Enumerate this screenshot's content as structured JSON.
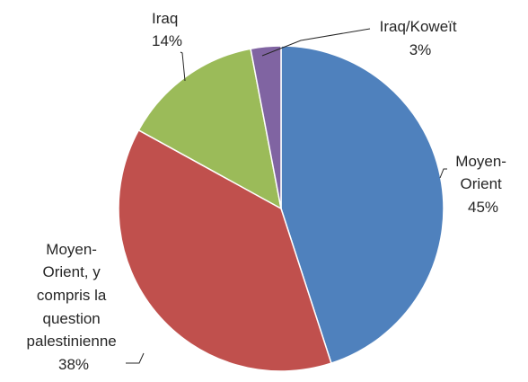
{
  "chart_data": {
    "type": "pie",
    "title": "",
    "start_angle_deg": 0,
    "direction": "clockwise",
    "slices": [
      {
        "label_lines": [
          "Moyen-",
          "Orient"
        ],
        "value": 45,
        "value_label": "45%",
        "color": "#4F81BD"
      },
      {
        "label_lines": [
          "Moyen-",
          "Orient, y",
          "compris la",
          "question",
          "palestinienne"
        ],
        "value": 38,
        "value_label": "38%",
        "color": "#C0504D"
      },
      {
        "label_lines": [
          "Iraq"
        ],
        "value": 14,
        "value_label": "14%",
        "color": "#9BBB59"
      },
      {
        "label_lines": [
          "Iraq/Koweït"
        ],
        "value": 3,
        "value_label": "3%",
        "color": "#8064A2"
      }
    ]
  }
}
